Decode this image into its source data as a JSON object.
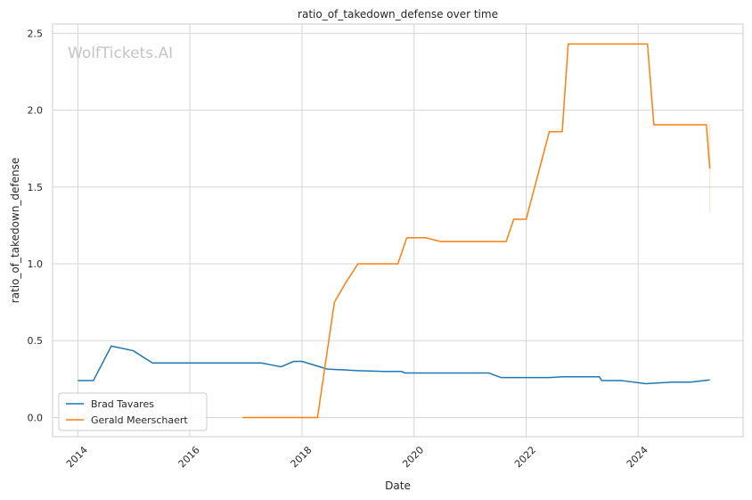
{
  "watermark": "WolfTickets.AI",
  "chart_data": {
    "type": "line",
    "title": "ratio_of_takedown_defense over time",
    "xlabel": "Date",
    "ylabel": "ratio_of_takedown_defense",
    "xlim": [
      "2013-07-20",
      "2025-11-15"
    ],
    "ylim": [
      -0.125,
      2.56
    ],
    "x_ticks": [
      "2014-01-01",
      "2016-01-01",
      "2018-01-01",
      "2020-01-01",
      "2022-01-01",
      "2024-01-01"
    ],
    "x_tick_labels": [
      "2014",
      "2016",
      "2018",
      "2020",
      "2022",
      "2024"
    ],
    "y_ticks": [
      0.0,
      0.5,
      1.0,
      1.5,
      2.0,
      2.5
    ],
    "y_tick_labels": [
      "0.0",
      "0.5",
      "1.0",
      "1.5",
      "2.0",
      "2.5"
    ],
    "grid": true,
    "legend_position": "lower-left",
    "series": [
      {
        "name": "Brad Tavares",
        "color": "#1f77b4",
        "points": [
          [
            "2014-01-01",
            0.24
          ],
          [
            "2014-04-12",
            0.24
          ],
          [
            "2014-08-07",
            0.465
          ],
          [
            "2014-12-27",
            0.435
          ],
          [
            "2015-05-02",
            0.355
          ],
          [
            "2016-01-01",
            0.355
          ],
          [
            "2017-01-01",
            0.355
          ],
          [
            "2017-04-12",
            0.355
          ],
          [
            "2017-06-26",
            0.34
          ],
          [
            "2017-08-16",
            0.33
          ],
          [
            "2017-11-08",
            0.365
          ],
          [
            "2018-01-01",
            0.365
          ],
          [
            "2018-06-16",
            0.315
          ],
          [
            "2019-01-01",
            0.305
          ],
          [
            "2019-06-23",
            0.3
          ],
          [
            "2019-10-12",
            0.3
          ],
          [
            "2019-11-02",
            0.29
          ],
          [
            "2020-01-01",
            0.29
          ],
          [
            "2021-05-02",
            0.29
          ],
          [
            "2021-07-20",
            0.26
          ],
          [
            "2022-01-01",
            0.26
          ],
          [
            "2022-06-01",
            0.26
          ],
          [
            "2022-08-24",
            0.265
          ],
          [
            "2023-04-22",
            0.265
          ],
          [
            "2023-05-10",
            0.24
          ],
          [
            "2023-09-18",
            0.24
          ],
          [
            "2024-02-21",
            0.22
          ],
          [
            "2024-08-07",
            0.23
          ],
          [
            "2024-12-07",
            0.23
          ],
          [
            "2025-04-12",
            0.245
          ]
        ]
      },
      {
        "name": "Gerald Meerschaert",
        "color": "#ff7f0e",
        "points": [
          [
            "2016-12-10",
            0.0
          ],
          [
            "2018-04-12",
            0.0
          ],
          [
            "2018-07-31",
            0.75
          ],
          [
            "2018-10-12",
            0.875
          ],
          [
            "2019-01-01",
            1.0
          ],
          [
            "2019-09-18",
            1.0
          ],
          [
            "2019-11-15",
            1.17
          ],
          [
            "2020-03-15",
            1.17
          ],
          [
            "2020-06-23",
            1.145
          ],
          [
            "2021-02-21",
            1.145
          ],
          [
            "2021-08-24",
            1.145
          ],
          [
            "2021-10-12",
            1.29
          ],
          [
            "2022-01-01",
            1.29
          ],
          [
            "2022-06-01",
            1.86
          ],
          [
            "2022-08-24",
            1.86
          ],
          [
            "2022-10-02",
            2.43
          ],
          [
            "2024-03-02",
            2.43
          ],
          [
            "2024-04-12",
            1.905
          ],
          [
            "2024-05-02",
            1.905
          ],
          [
            "2025-03-21",
            1.905
          ],
          [
            "2025-04-12",
            1.62
          ]
        ]
      }
    ],
    "error_band": {
      "series": "Gerald Meerschaert",
      "x": "2025-04-12",
      "low": 1.33,
      "high": 1.91
    }
  }
}
